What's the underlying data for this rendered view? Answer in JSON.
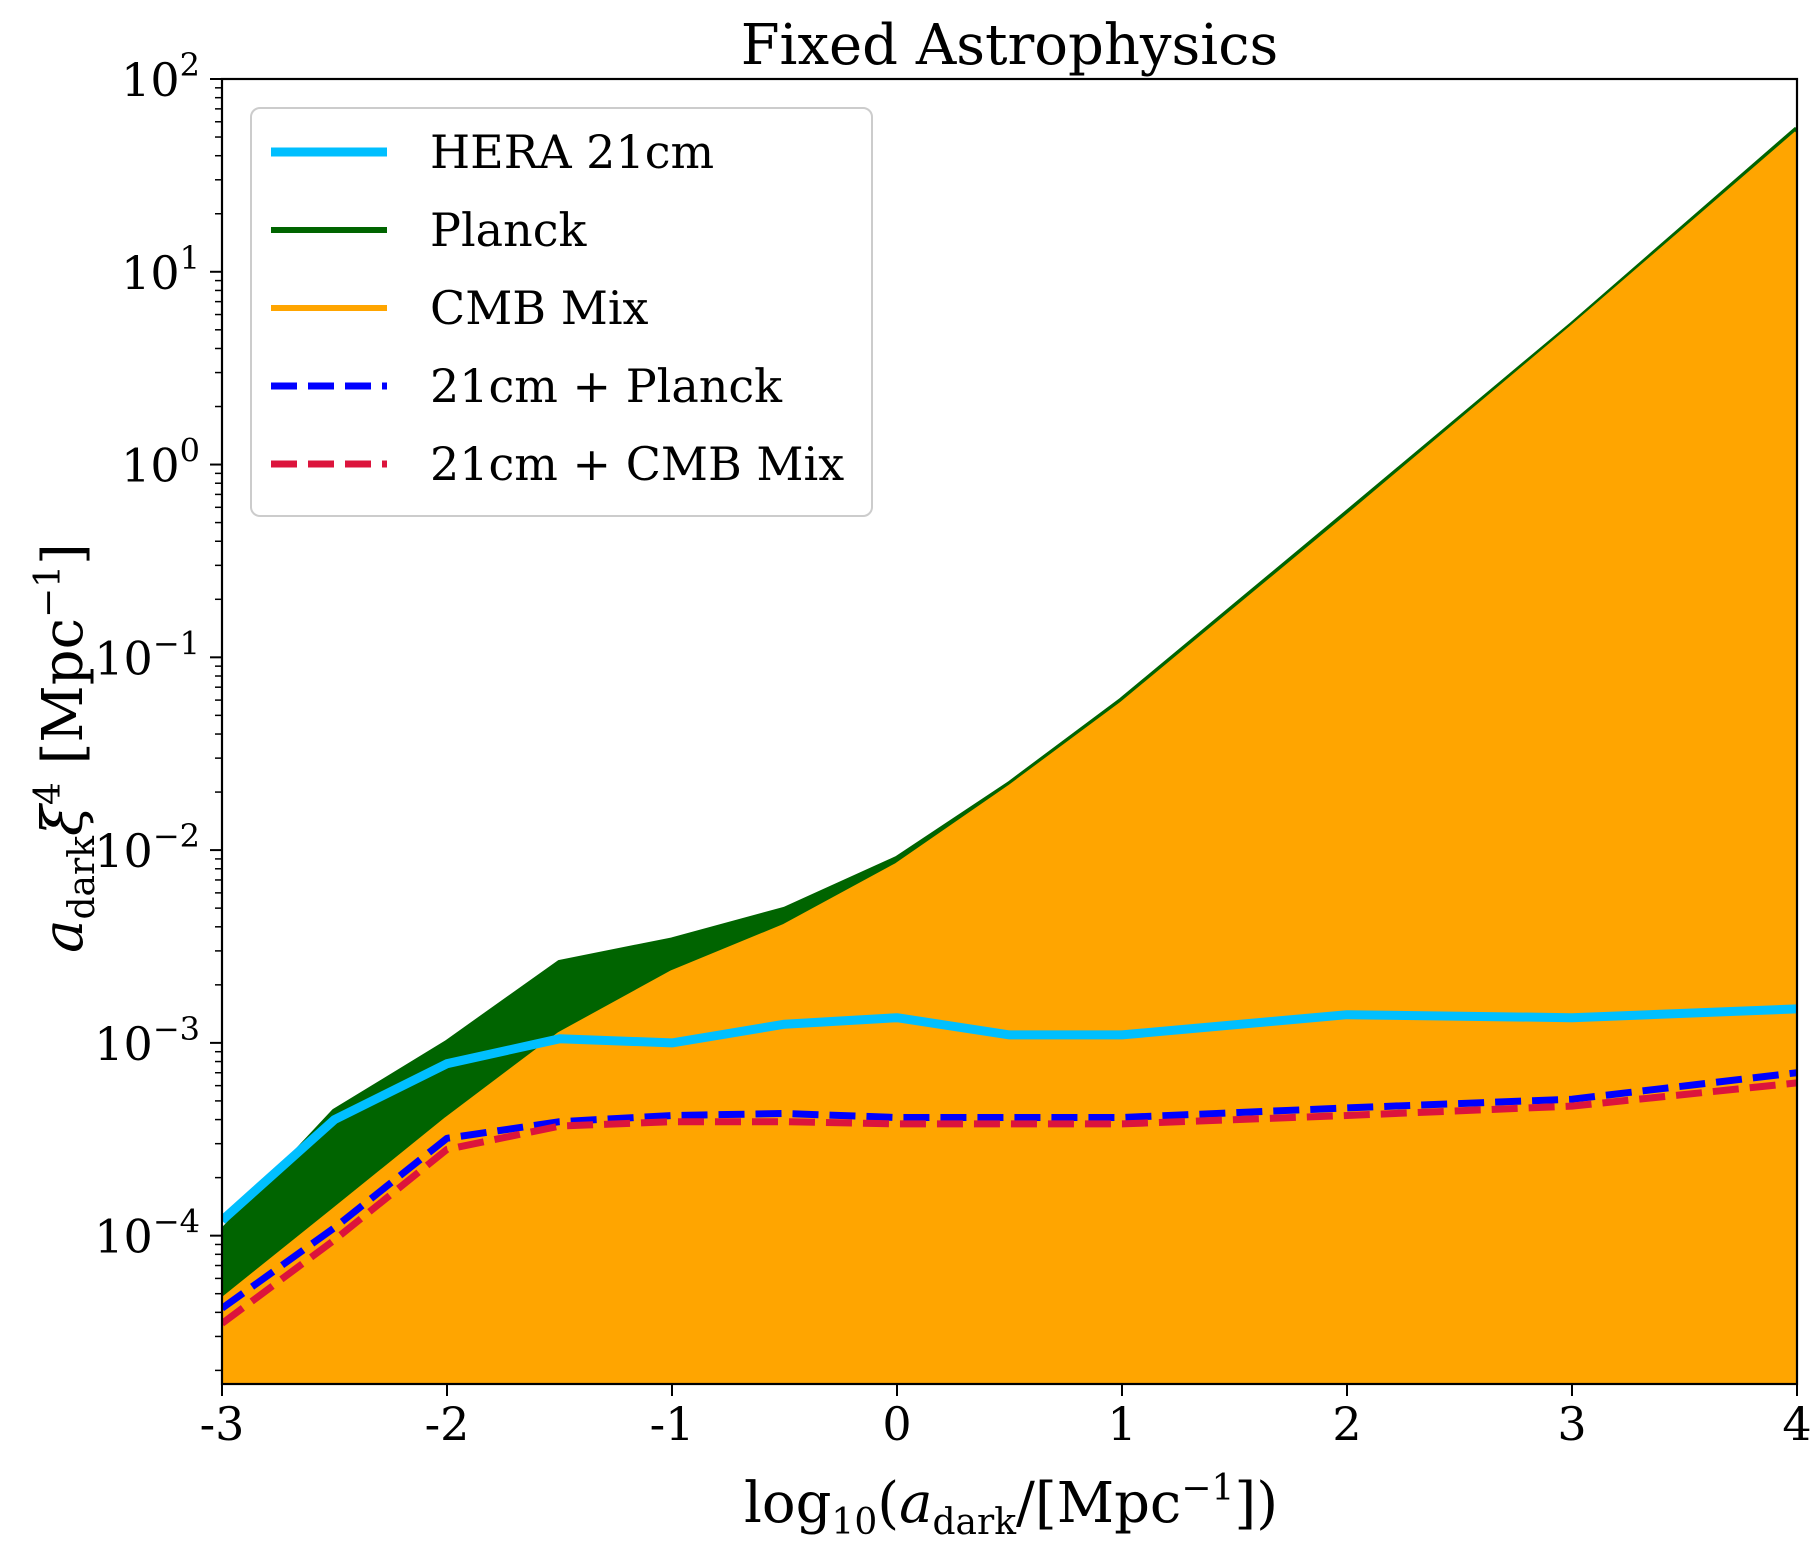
{
  "chart_data": {
    "type": "line",
    "title": "Fixed Astrophysics",
    "xlabel": "log10(adark/[Mpc−1])",
    "ylabel": "adark ξ4 [Mpc−1]",
    "x_scale": "linear",
    "y_scale": "log",
    "xlim": [
      -3,
      4
    ],
    "ylim": [
      1.7e-05,
      100
    ],
    "x_ticks": [
      {
        "value": -3,
        "label": "-3"
      },
      {
        "value": -2,
        "label": "-2"
      },
      {
        "value": -1,
        "label": "-1"
      },
      {
        "value": 0,
        "label": "0"
      },
      {
        "value": 1,
        "label": "1"
      },
      {
        "value": 2,
        "label": "2"
      },
      {
        "value": 3,
        "label": "3"
      },
      {
        "value": 4,
        "label": "4"
      }
    ],
    "y_ticks": [
      {
        "exp": -4,
        "base": "10",
        "sup": "−4"
      },
      {
        "exp": -3,
        "base": "10",
        "sup": "−3"
      },
      {
        "exp": -2,
        "base": "10",
        "sup": "−2"
      },
      {
        "exp": -1,
        "base": "10",
        "sup": "−1"
      },
      {
        "exp": 0,
        "base": "10",
        "sup": "0"
      },
      {
        "exp": 1,
        "base": "10",
        "sup": "1"
      },
      {
        "exp": 2,
        "base": "10",
        "sup": "2"
      }
    ],
    "grid": false,
    "legend_position": "top-left",
    "series": [
      {
        "name": "HERA 21cm",
        "color": "#00bfff",
        "style": "solid",
        "fill": false,
        "x": [
          -3,
          -2.5,
          -2,
          -1.5,
          -1,
          -0.5,
          0,
          0.5,
          1,
          2,
          3,
          4
        ],
        "y": [
          0.00012,
          0.0004,
          0.00078,
          0.00105,
          0.001,
          0.00125,
          0.00135,
          0.0011,
          0.0011,
          0.0014,
          0.00135,
          0.0015
        ]
      },
      {
        "name": "Planck",
        "color": "#006400",
        "style": "solid",
        "fill": true,
        "x": [
          -3,
          -2.5,
          -2,
          -1.5,
          -1,
          -0.5,
          0,
          0.5,
          1,
          2,
          3,
          4
        ],
        "y": [
          0.000105,
          0.00044,
          0.001,
          0.0026,
          0.0034,
          0.0049,
          0.009,
          0.022,
          0.06,
          0.56,
          5.3,
          55
        ]
      },
      {
        "name": "CMB Mix",
        "color": "#ffa500",
        "style": "solid",
        "fill": true,
        "x": [
          -3,
          -2.5,
          -2,
          -1.5,
          -1,
          -0.5,
          0,
          0.5,
          1,
          2,
          3,
          4
        ],
        "y": [
          4.6e-05,
          0.000135,
          0.0004,
          0.0011,
          0.0023,
          0.004,
          0.0083,
          0.021,
          0.057,
          0.53,
          5.1,
          52
        ]
      },
      {
        "name": "21cm + Planck",
        "color": "#0000ff",
        "style": "dashed",
        "fill": false,
        "x": [
          -3,
          -2.5,
          -2,
          -1.5,
          -1,
          -0.5,
          0,
          0.5,
          1,
          2,
          3,
          4
        ],
        "y": [
          4.2e-05,
          0.00011,
          0.00032,
          0.00039,
          0.00042,
          0.00043,
          0.00041,
          0.00041,
          0.00041,
          0.00046,
          0.00051,
          0.0007
        ]
      },
      {
        "name": "21cm + CMB Mix",
        "color": "#dc143c",
        "style": "dashed",
        "fill": false,
        "x": [
          -3,
          -2.5,
          -2,
          -1.5,
          -1,
          -0.5,
          0,
          0.5,
          1,
          2,
          3,
          4
        ],
        "y": [
          3.5e-05,
          9.5e-05,
          0.00028,
          0.00037,
          0.00039,
          0.00039,
          0.00038,
          0.00038,
          0.00038,
          0.00042,
          0.00047,
          0.00062
        ]
      }
    ]
  }
}
